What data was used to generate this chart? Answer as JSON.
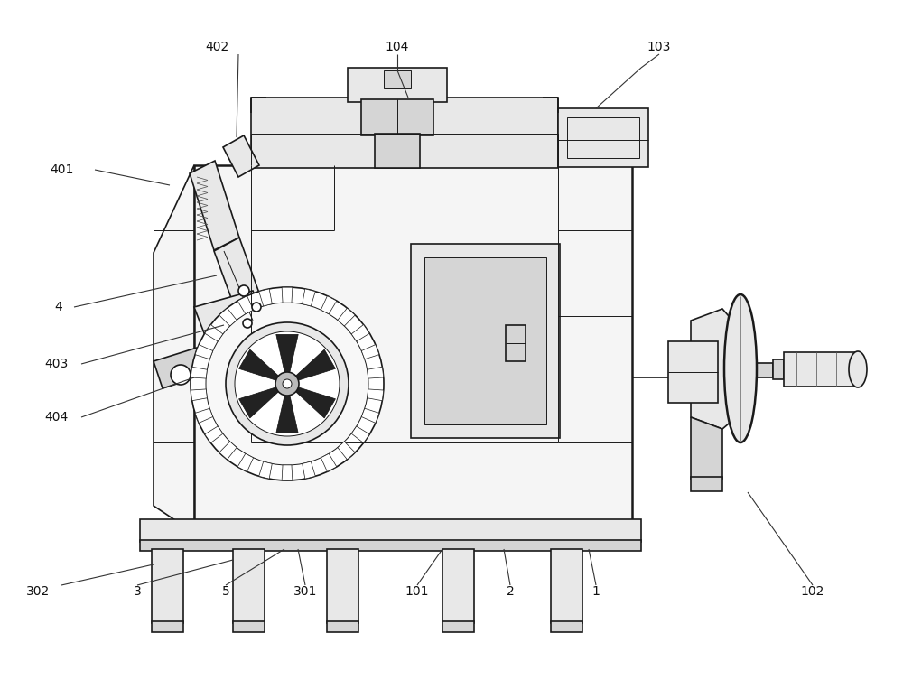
{
  "bg": "#ffffff",
  "lc": "#1a1a1a",
  "lw": 1.2,
  "lwt": 0.7,
  "lwtk": 1.8,
  "f1": "#f5f5f5",
  "f2": "#e8e8e8",
  "f3": "#d5d5d5",
  "f4": "#444444",
  "fw": 10.0,
  "fh": 7.53
}
